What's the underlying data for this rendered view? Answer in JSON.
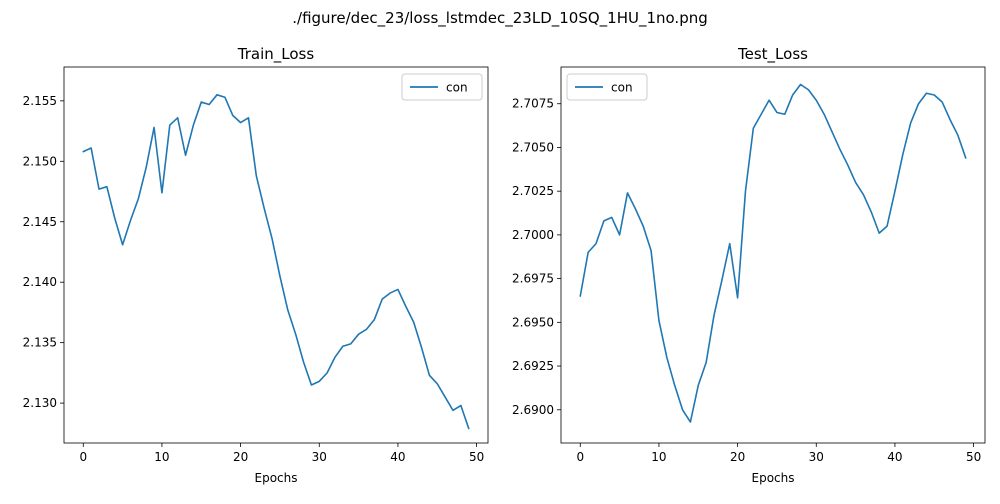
{
  "figure": {
    "suptitle": "./figure/dec_23/loss_lstmdec_23LD_10SQ_1HU_1no.png"
  },
  "chart_data": [
    {
      "type": "line",
      "title": "Train_Loss",
      "xlabel": "Epochs",
      "ylabel": "",
      "xlim": [
        -2.45,
        51.45
      ],
      "ylim": [
        2.1267,
        2.1578
      ],
      "xticks": [
        0,
        10,
        20,
        30,
        40,
        50
      ],
      "xtick_labels": [
        "0",
        "10",
        "20",
        "30",
        "40",
        "50"
      ],
      "yticks": [
        2.13,
        2.135,
        2.14,
        2.145,
        2.15,
        2.155
      ],
      "ytick_labels": [
        "2.130",
        "2.135",
        "2.140",
        "2.145",
        "2.150",
        "2.155"
      ],
      "legend": {
        "location": "top-right",
        "entries": [
          "con"
        ]
      },
      "series": [
        {
          "name": "con",
          "color": "#1f77b4",
          "x": [
            0,
            1,
            2,
            3,
            4,
            5,
            6,
            7,
            8,
            9,
            10,
            11,
            12,
            13,
            14,
            15,
            16,
            17,
            18,
            19,
            20,
            21,
            22,
            23,
            24,
            25,
            26,
            27,
            28,
            29,
            30,
            31,
            32,
            33,
            34,
            35,
            36,
            37,
            38,
            39,
            40,
            41,
            42,
            43,
            44,
            45,
            46,
            47,
            48,
            49
          ],
          "values": [
            2.1508,
            2.1511,
            2.1477,
            2.1479,
            2.1453,
            2.1431,
            2.1451,
            2.1469,
            2.1495,
            2.1528,
            2.1474,
            2.153,
            2.1536,
            2.1505,
            2.153,
            2.1549,
            2.1547,
            2.1555,
            2.1553,
            2.1538,
            2.1532,
            2.1536,
            2.1488,
            2.1461,
            2.1436,
            2.1405,
            2.1377,
            2.1357,
            2.1334,
            2.1315,
            2.1318,
            2.1325,
            2.1338,
            2.1347,
            2.1349,
            2.1357,
            2.1361,
            2.1369,
            2.1386,
            2.1391,
            2.1394,
            2.138,
            2.1367,
            2.1346,
            2.1323,
            2.1316,
            2.1305,
            2.1294,
            2.1298,
            2.1279
          ]
        }
      ]
    },
    {
      "type": "line",
      "title": "Test_Loss",
      "xlabel": "Epochs",
      "ylabel": "",
      "xlim": [
        -2.45,
        51.45
      ],
      "ylim": [
        2.6881,
        2.7096
      ],
      "xticks": [
        0,
        10,
        20,
        30,
        40,
        50
      ],
      "xtick_labels": [
        "0",
        "10",
        "20",
        "30",
        "40",
        "50"
      ],
      "yticks": [
        2.69,
        2.6925,
        2.695,
        2.6975,
        2.7,
        2.7025,
        2.705,
        2.7075
      ],
      "ytick_labels": [
        "2.6900",
        "2.6925",
        "2.6950",
        "2.6975",
        "2.7000",
        "2.7025",
        "2.7050",
        "2.7075"
      ],
      "legend": {
        "location": "top-left",
        "entries": [
          "con"
        ]
      },
      "series": [
        {
          "name": "con",
          "color": "#1f77b4",
          "x": [
            0,
            1,
            2,
            3,
            4,
            5,
            6,
            7,
            8,
            9,
            10,
            11,
            12,
            13,
            14,
            15,
            16,
            17,
            18,
            19,
            20,
            21,
            22,
            23,
            24,
            25,
            26,
            27,
            28,
            29,
            30,
            31,
            32,
            33,
            34,
            35,
            36,
            37,
            38,
            39,
            40,
            41,
            42,
            43,
            44,
            45,
            46,
            47,
            48,
            49
          ],
          "values": [
            2.6965,
            2.699,
            2.6995,
            2.7008,
            2.701,
            2.7,
            2.7024,
            2.7015,
            2.7005,
            2.6991,
            2.6951,
            2.693,
            2.6914,
            2.69,
            2.6893,
            2.6914,
            2.6927,
            2.6954,
            2.6974,
            2.6995,
            2.6964,
            2.7025,
            2.7061,
            2.7069,
            2.7077,
            2.707,
            2.7069,
            2.708,
            2.7086,
            2.7083,
            2.7077,
            2.7069,
            2.7059,
            2.7049,
            2.704,
            2.703,
            2.7023,
            2.7013,
            2.7001,
            2.7005,
            2.7025,
            2.7046,
            2.7064,
            2.7075,
            2.7081,
            2.708,
            2.7076,
            2.7066,
            2.7057,
            2.7044
          ]
        }
      ]
    }
  ]
}
